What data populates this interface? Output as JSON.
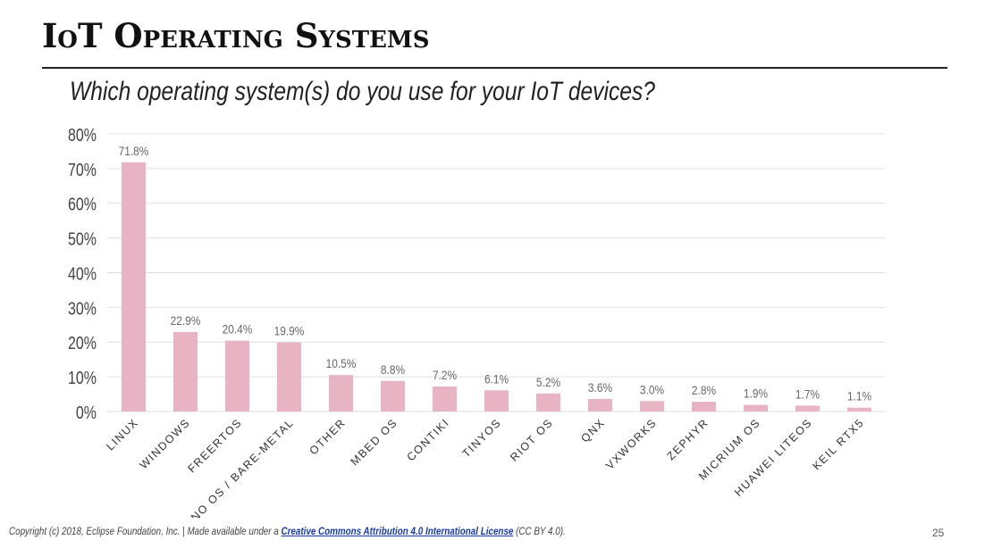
{
  "title": "IoT Operating Systems",
  "subtitle": "Which operating system(s) do you use for your IoT devices?",
  "footer": {
    "prefix": "Copyright (c) 2018, Eclipse Foundation, Inc. | Made available under a ",
    "link": "Creative Commons Attribution 4.0 International License",
    "suffix": " (CC BY 4.0)."
  },
  "page_number": "25",
  "colors": {
    "bar": "#e8b4c3",
    "grid": "#e0e0e0",
    "label": "#666666",
    "axis_tick": "#444444"
  },
  "chart_data": {
    "type": "bar",
    "categories": [
      "LINUX",
      "WINDOWS",
      "FREERTOS",
      "NO OS / BARE-METAL",
      "OTHER",
      "MBED OS",
      "CONTIKI",
      "TINYOS",
      "RIOT OS",
      "QNX",
      "VXWORKS",
      "ZEPHYR",
      "MICRIUM OS",
      "HUAWEI LITEOS",
      "KEIL RTX5"
    ],
    "values": [
      71.8,
      22.9,
      20.4,
      19.9,
      10.5,
      8.8,
      7.2,
      6.1,
      5.2,
      3.6,
      3.0,
      2.8,
      1.9,
      1.7,
      1.1
    ],
    "data_labels": [
      "71.8%",
      "22.9%",
      "20.4%",
      "19.9%",
      "10.5%",
      "8.8%",
      "7.2%",
      "6.1%",
      "5.2%",
      "3.6%",
      "3.0%",
      "2.8%",
      "1.9%",
      "1.7%",
      "1.1%"
    ],
    "yticks": [
      "0%",
      "10%",
      "20%",
      "30%",
      "40%",
      "50%",
      "60%",
      "70%",
      "80%"
    ],
    "ylim": [
      0,
      80
    ],
    "grid": true,
    "legend": false
  }
}
